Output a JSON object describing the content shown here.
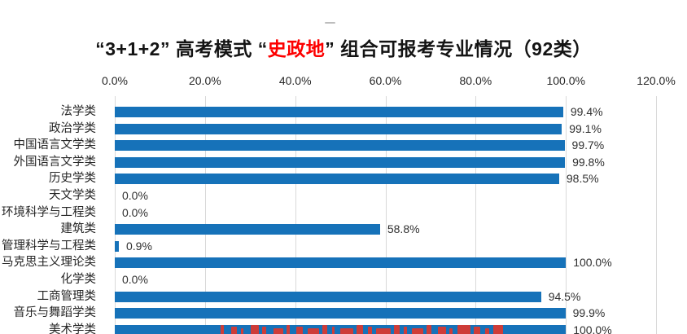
{
  "title": {
    "prefix": "“3+1+2” 高考模式 “",
    "highlight": "史政地",
    "suffix": "” 组合可报考专业情况（92类）"
  },
  "colors": {
    "bar": "#1672B9",
    "title_highlight": "#FD0000",
    "gridline": "#D9D9D9",
    "axis_text": "#262626",
    "watermark_red": "#E2362A"
  },
  "chart_data": {
    "type": "bar",
    "orientation": "horizontal",
    "title": "“3+1+2”高考模式“史政地”组合可报考专业情况（92类）",
    "categories": [
      "法学类",
      "政治学类",
      "中国语言文学类",
      "外国语言文学类",
      "历史学类",
      "天文学类",
      "环境科学与工程类",
      "建筑类",
      "管理科学与工程类",
      "马克思主义理论类",
      "化学类",
      "工商管理类",
      "音乐与舞蹈学类",
      "美术学类"
    ],
    "values": [
      99.4,
      99.1,
      99.7,
      99.8,
      98.5,
      0.0,
      0.0,
      58.8,
      0.9,
      100.0,
      0.0,
      94.5,
      99.9,
      100.0
    ],
    "value_labels": [
      "99.4%",
      "99.1%",
      "99.7%",
      "99.8%",
      "98.5%",
      "0.0%",
      "0.0%",
      "58.8%",
      "0.9%",
      "100.0%",
      "0.0%",
      "94.5%",
      "99.9%",
      "100.0%"
    ],
    "x_ticks": [
      "0.0%",
      "20.0%",
      "40.0%",
      "60.0%",
      "80.0%",
      "100.0%",
      "120.0%"
    ],
    "x_tick_values": [
      0,
      20,
      40,
      60,
      80,
      100,
      120
    ],
    "xlim": [
      0,
      120
    ],
    "grid": "vertical-gridlines",
    "legend": "none",
    "bar_color": "#1672B9"
  }
}
